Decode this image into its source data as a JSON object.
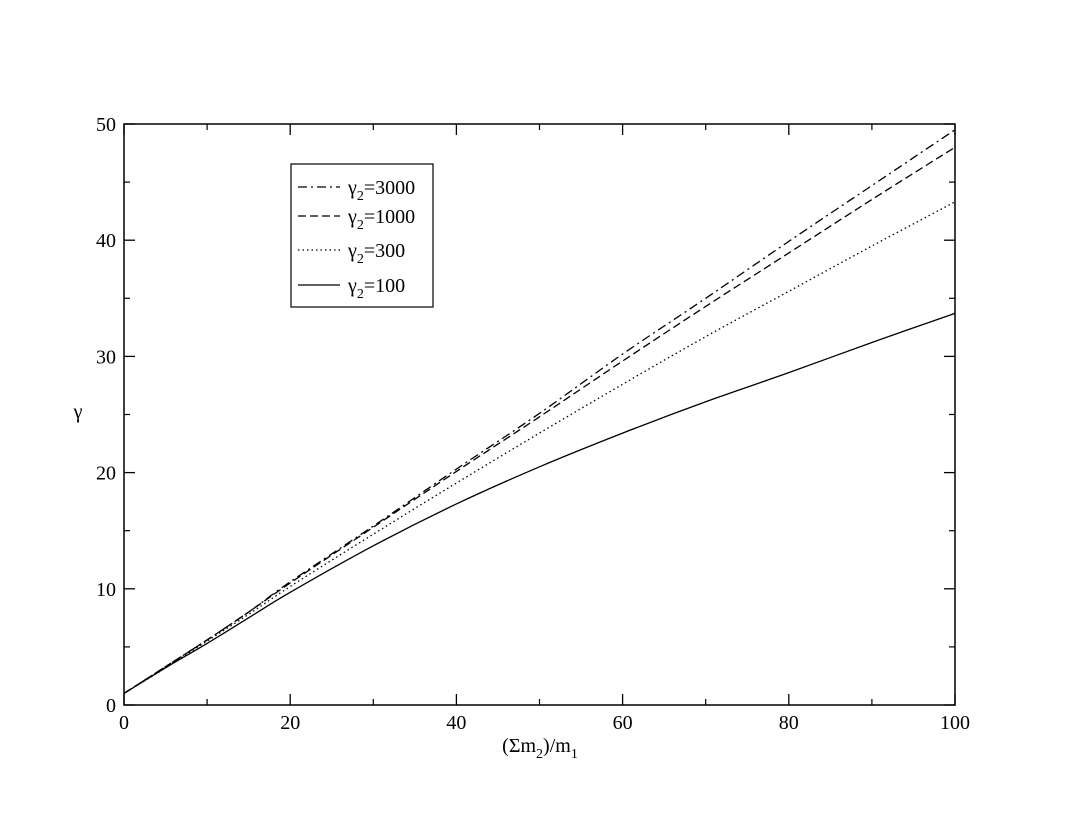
{
  "chart_data": {
    "type": "line",
    "title": "",
    "xlabel": "(Σm2)/m1",
    "xlabel_parts": {
      "pre": "(Σm",
      "sub1": "2",
      "mid": ")/m",
      "sub2": "1"
    },
    "ylabel": "γ",
    "xlim": [
      0,
      100
    ],
    "ylim": [
      0,
      50
    ],
    "x_major_ticks": [
      0,
      20,
      40,
      60,
      80,
      100
    ],
    "x_tick_labels": [
      "0",
      "20",
      "40",
      "60",
      "80",
      "100"
    ],
    "x_minor_ticks": [
      10,
      30,
      50,
      70,
      90
    ],
    "y_major_ticks": [
      0,
      10,
      20,
      30,
      40,
      50
    ],
    "y_tick_labels": [
      "0",
      "10",
      "20",
      "30",
      "40",
      "50"
    ],
    "y_minor_ticks": [
      5,
      15,
      25,
      35,
      45
    ],
    "grid": false,
    "legend_position": "top-left",
    "x": [
      0,
      5,
      10,
      15,
      20,
      30,
      40,
      50,
      60,
      70,
      80,
      90,
      100
    ],
    "series": [
      {
        "name": "γ2=3000",
        "legend_symbol": "γ",
        "legend_sub": "2",
        "legend_value": "=3000",
        "style": "dashdot",
        "values": [
          1.0,
          3.3,
          5.6,
          8.0,
          10.6,
          15.4,
          20.3,
          25.1,
          30.2,
          35.0,
          39.9,
          44.7,
          49.5
        ]
      },
      {
        "name": "γ2=1000",
        "legend_symbol": "γ",
        "legend_sub": "2",
        "legend_value": "=1000",
        "style": "dashed",
        "values": [
          1.0,
          3.3,
          5.6,
          8.0,
          10.5,
          15.3,
          20.1,
          24.8,
          29.6,
          34.3,
          38.9,
          43.5,
          48.0
        ]
      },
      {
        "name": "γ2=300",
        "legend_symbol": "γ",
        "legend_sub": "2",
        "legend_value": "=300",
        "style": "dotted",
        "values": [
          1.0,
          3.2,
          5.5,
          7.8,
          10.2,
          14.7,
          19.1,
          23.4,
          27.6,
          31.7,
          35.6,
          39.5,
          43.3
        ]
      },
      {
        "name": "γ2=100",
        "legend_symbol": "γ",
        "legend_sub": "2",
        "legend_value": "=100",
        "style": "solid",
        "values": [
          1.0,
          3.2,
          5.3,
          7.5,
          9.7,
          13.7,
          17.3,
          20.5,
          23.4,
          26.1,
          28.6,
          31.2,
          33.7
        ]
      }
    ]
  }
}
